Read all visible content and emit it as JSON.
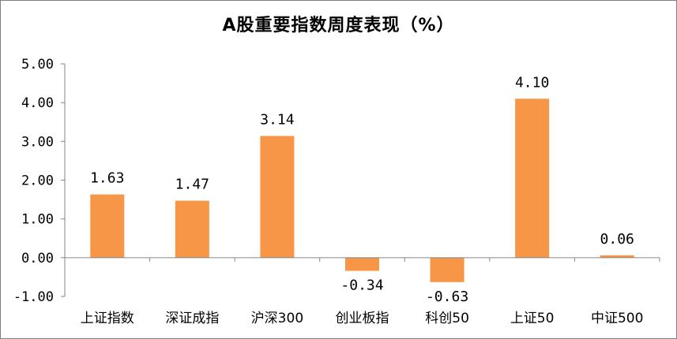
{
  "chart_data": {
    "type": "bar",
    "title": "A股重要指数周度表现（%）",
    "categories": [
      "上证指数",
      "深证成指",
      "沪深300",
      "创业板指",
      "科创50",
      "上证50",
      "中证500"
    ],
    "values": [
      1.63,
      1.47,
      3.14,
      -0.34,
      -0.63,
      4.1,
      0.06
    ],
    "value_labels": [
      "1.63",
      "1.47",
      "3.14",
      "-0.34",
      "-0.63",
      "4.10",
      "0.06"
    ],
    "ylim": [
      -1,
      5
    ],
    "yticks": [
      5,
      4,
      3,
      2,
      1,
      0,
      -1
    ],
    "ytick_labels": [
      "5.00",
      "4.00",
      "3.00",
      "2.00",
      "1.00",
      "0.00",
      "-1.00"
    ],
    "bar_color": "#f79646",
    "grid": false,
    "legend": "none"
  }
}
